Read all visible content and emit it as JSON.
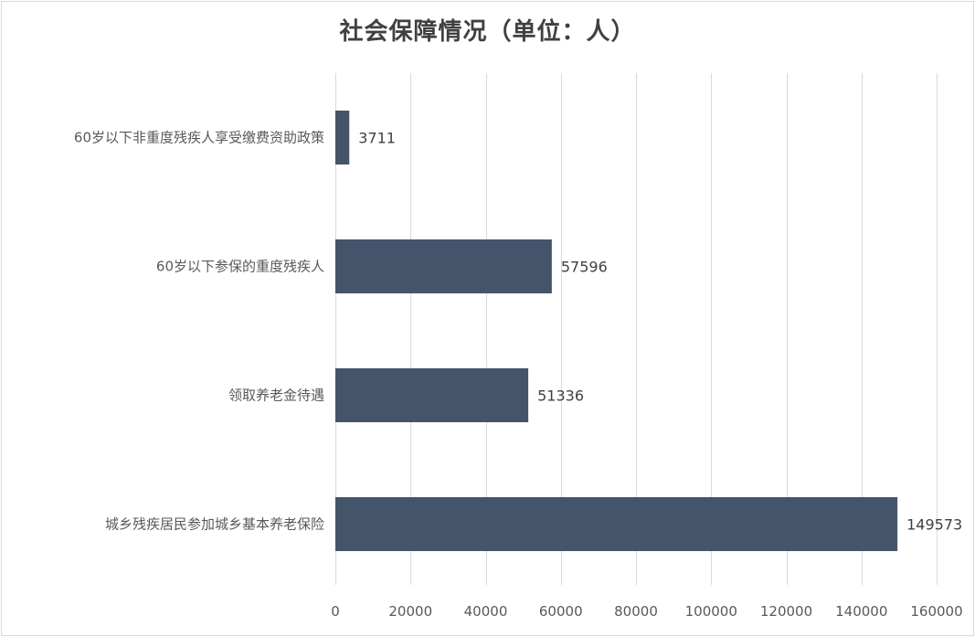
{
  "chart_data": {
    "type": "bar",
    "orientation": "horizontal",
    "title": "社会保障情况（单位：人）",
    "categories": [
      "60岁以下非重度残疾人享受缴费资助政策",
      "60岁以下参保的重度残疾人",
      "领取养老金待遇",
      "城乡残疾居民参加城乡基本养老保险"
    ],
    "values": [
      3711,
      57596,
      51336,
      149573
    ],
    "data_labels": [
      "3711",
      "57596",
      "51336",
      "149573"
    ],
    "xlim": [
      0,
      160000
    ],
    "x_ticks": [
      0,
      20000,
      40000,
      60000,
      80000,
      100000,
      120000,
      140000,
      160000
    ],
    "x_tick_labels": [
      "0",
      "20000",
      "40000",
      "60000",
      "80000",
      "100000",
      "120000",
      "140000",
      "160000"
    ],
    "grid": "vertical",
    "legend": "none",
    "bar_color": "#44546a",
    "gridline_color": "#d9d9d9"
  }
}
